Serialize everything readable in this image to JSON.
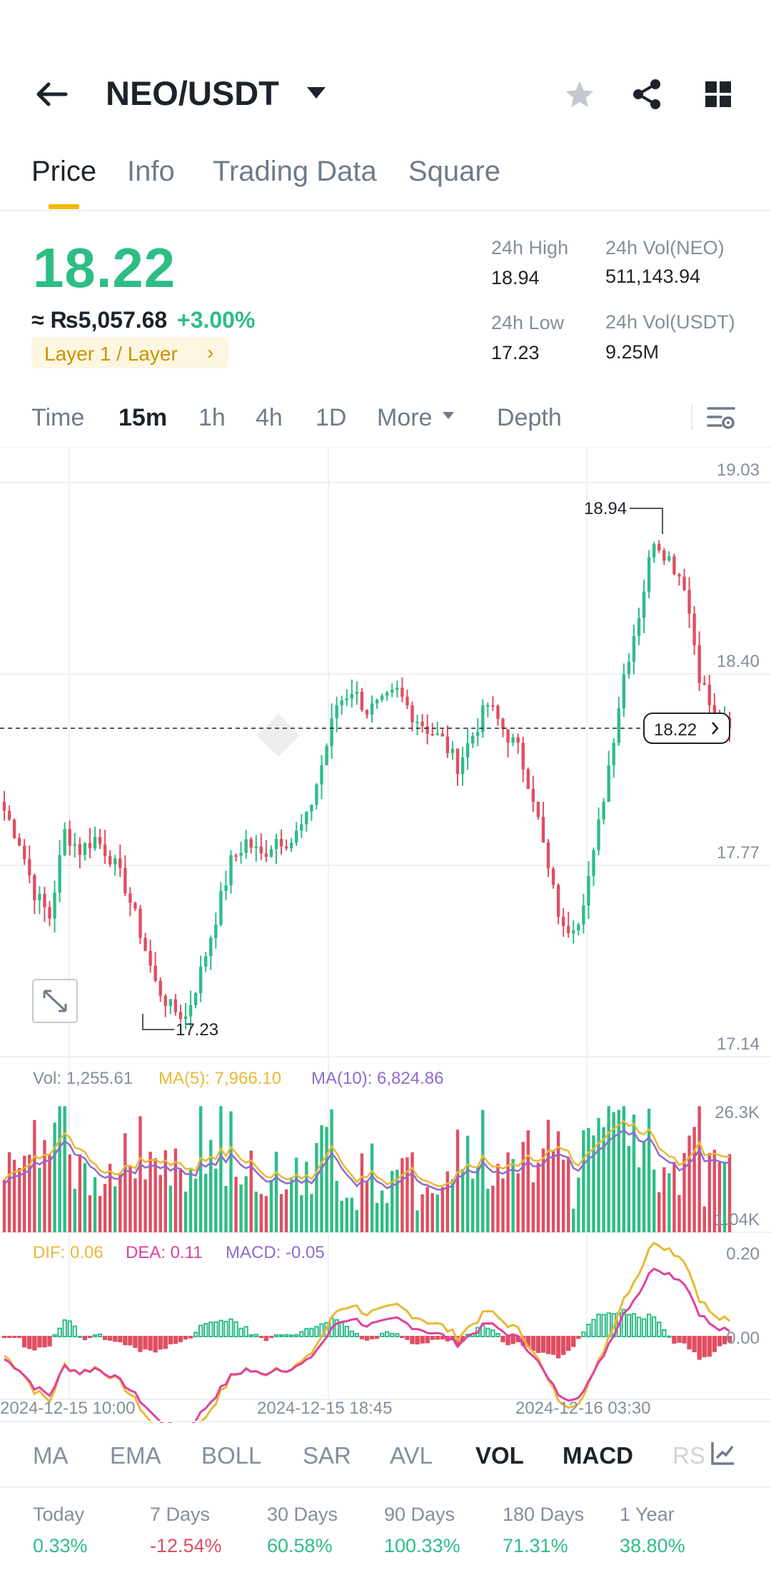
{
  "header": {
    "pair": "NEO/USDT",
    "icons": {
      "back": "back-arrow-icon",
      "dropdown": "caret-down-icon",
      "favorite": "star-icon",
      "share": "share-icon",
      "grid": "grid-icon"
    }
  },
  "tabs": [
    {
      "label": "Price",
      "active": true
    },
    {
      "label": "Info",
      "active": false
    },
    {
      "label": "Trading Data",
      "active": false
    },
    {
      "label": "Square",
      "active": false
    }
  ],
  "price": {
    "last": "18.22",
    "fiat": "≈ ₨5,057.68",
    "change": "+3.00%",
    "tag": "Layer 1 / Layer",
    "high_label": "24h High",
    "high": "18.94",
    "low_label": "24h Low",
    "low": "17.23",
    "vol_base_label": "24h Vol(NEO)",
    "vol_base": "511,143.94",
    "vol_quote_label": "24h Vol(USDT)",
    "vol_quote": "9.25M"
  },
  "timeframes": {
    "items": [
      "Time",
      "15m",
      "1h",
      "4h",
      "1D",
      "More",
      "Depth"
    ],
    "active": "15m"
  },
  "chart": {
    "price_axis": [
      "19.03",
      "18.40",
      "17.77",
      "17.14"
    ],
    "high_marker": "18.94",
    "low_marker": "17.23",
    "current_price": "18.22",
    "vol_legend": {
      "vol": "Vol: 1,255.61",
      "ma5": "MA(5): 7,966.10",
      "ma10": "MA(10): 6,824.86"
    },
    "vol_axis": [
      "26.3K",
      "1.04K"
    ],
    "macd_legend": {
      "dif": "DIF: 0.06",
      "dea": "DEA: 0.11",
      "macd": "MACD: -0.05"
    },
    "macd_axis": [
      "0.20",
      "0.00"
    ],
    "time_axis": [
      "2024-12-15 10:00",
      "2024-12-15 18:45",
      "2024-12-16 03:30"
    ],
    "colors": {
      "up": "#2ebd85",
      "down": "#e04e62",
      "ma5": "#e8b936",
      "ma10": "#8e6bcf",
      "dea": "#e040a0"
    }
  },
  "chart_data": {
    "type": "candlestick",
    "interval": "15m",
    "ylim": [
      17.14,
      19.03
    ],
    "y_ticks": [
      19.03,
      18.4,
      17.77,
      17.14
    ],
    "x_ticks": [
      "2024-12-15 10:00",
      "2024-12-15 18:45",
      "2024-12-16 03:30"
    ],
    "high": 18.94,
    "low": 17.23,
    "last": 18.22,
    "close_path": [
      17.95,
      17.85,
      17.68,
      17.6,
      17.88,
      17.82,
      17.86,
      17.8,
      17.7,
      17.55,
      17.38,
      17.3,
      17.27,
      17.42,
      17.6,
      17.78,
      17.85,
      17.8,
      17.86,
      17.85,
      17.92,
      18.1,
      18.3,
      18.35,
      18.28,
      18.3,
      18.34,
      18.27,
      18.22,
      18.18,
      18.1,
      18.2,
      18.3,
      18.22,
      18.15,
      18.0,
      17.75,
      17.55,
      17.6,
      17.8,
      18.1,
      18.4,
      18.6,
      18.85,
      18.78,
      18.7,
      18.4,
      18.25,
      18.22
    ],
    "volume": {
      "ma5": 7966.1,
      "ma10": 6824.86,
      "last": 1255.61,
      "ylim": [
        1040,
        26300
      ]
    },
    "macd": {
      "dif": 0.06,
      "dea": 0.11,
      "hist": -0.05,
      "ylim_top": 0.2
    }
  },
  "indicators": {
    "items": [
      "MA",
      "EMA",
      "BOLL",
      "SAR",
      "AVL",
      "VOL",
      "MACD",
      "RS"
    ],
    "active": [
      "VOL",
      "MACD"
    ]
  },
  "performance": [
    {
      "label": "Today",
      "value": "0.33%",
      "dir": "up"
    },
    {
      "label": "7 Days",
      "value": "-12.54%",
      "dir": "down"
    },
    {
      "label": "30 Days",
      "value": "60.58%",
      "dir": "up"
    },
    {
      "label": "90 Days",
      "value": "100.33%",
      "dir": "up"
    },
    {
      "label": "180 Days",
      "value": "71.31%",
      "dir": "up"
    },
    {
      "label": "1 Year",
      "value": "38.80%",
      "dir": "up"
    }
  ]
}
